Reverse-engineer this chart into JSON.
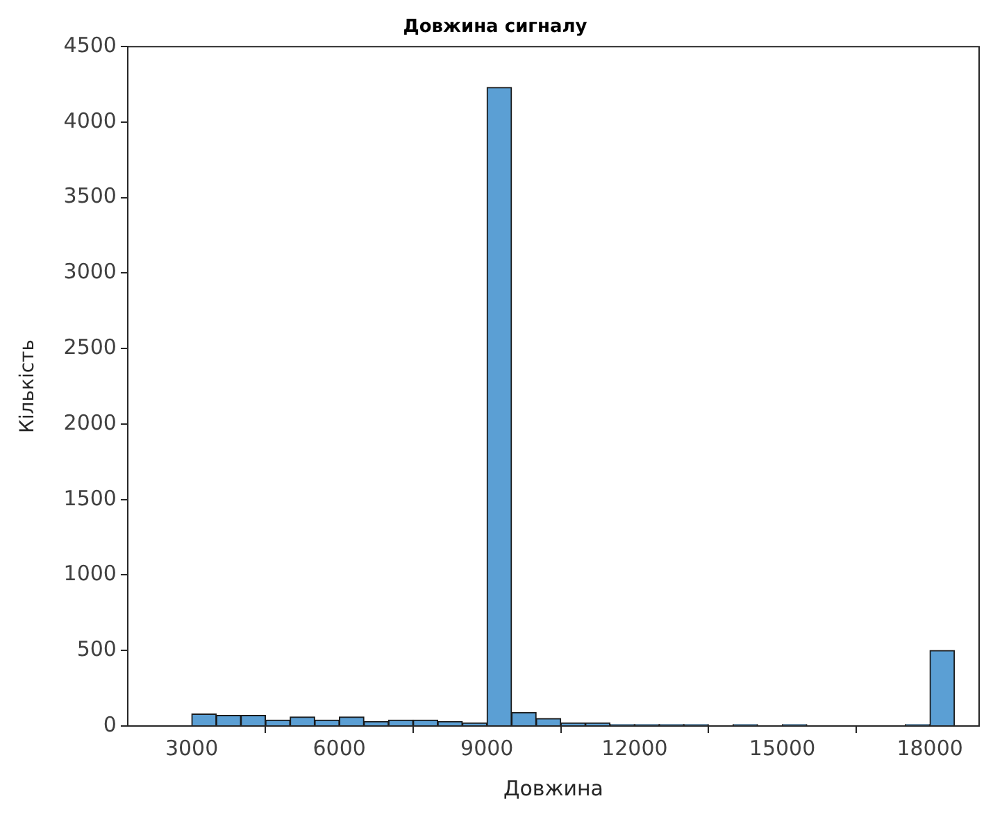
{
  "chart_data": {
    "type": "histogram",
    "title": "Довжина сигналу",
    "xlabel": "Довжина",
    "ylabel": "Кількість",
    "bins": [
      3000,
      3500,
      4000,
      4500,
      5000,
      5500,
      6000,
      6500,
      7000,
      7500,
      8000,
      8500,
      9000,
      9500,
      10000,
      10500,
      11000,
      11500,
      12000,
      12500,
      13000,
      13500,
      14000,
      14500,
      15000,
      15500,
      16000,
      16500,
      17000,
      17500,
      18000,
      18500
    ],
    "values": [
      80,
      70,
      70,
      40,
      60,
      40,
      60,
      30,
      40,
      40,
      30,
      20,
      4230,
      90,
      50,
      20,
      20,
      10,
      10,
      10,
      10,
      0,
      10,
      0,
      10,
      0,
      0,
      0,
      0,
      10,
      500
    ],
    "color": "#5b9fd4",
    "xlim": [
      1700,
      19000
    ],
    "xticks": [
      3000,
      6000,
      9000,
      12000,
      15000,
      18000
    ],
    "ylim": [
      0,
      4500
    ],
    "yticks": [
      0,
      500,
      1000,
      1500,
      2000,
      2500,
      3000,
      3500,
      4000,
      4500
    ],
    "grid": false,
    "legend": false
  }
}
